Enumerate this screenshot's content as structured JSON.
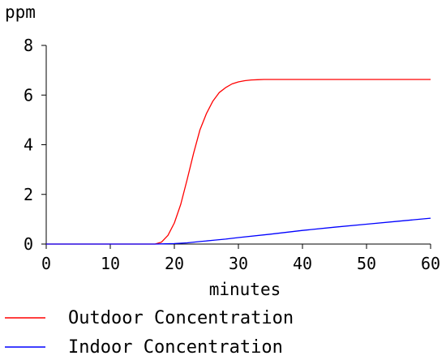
{
  "chart_data": {
    "type": "line",
    "xlabel": "minutes",
    "ylabel": "ppm",
    "xlim": [
      0,
      60
    ],
    "ylim": [
      0,
      8
    ],
    "x_ticks": [
      "0",
      "10",
      "20",
      "30",
      "40",
      "50",
      "60"
    ],
    "y_ticks": [
      "0",
      "2",
      "4",
      "6",
      "8"
    ],
    "grid": false,
    "legend_position": "bottom",
    "series": [
      {
        "name": "Outdoor Concentration",
        "color": "#ff0000",
        "x": [
          0,
          17,
          18,
          19,
          20,
          21,
          22,
          23,
          24,
          25,
          26,
          27,
          28,
          29,
          30,
          31,
          32,
          33,
          34,
          35,
          60
        ],
        "y": [
          0,
          0,
          0.08,
          0.35,
          0.85,
          1.6,
          2.6,
          3.65,
          4.6,
          5.25,
          5.75,
          6.1,
          6.3,
          6.45,
          6.53,
          6.58,
          6.61,
          6.62,
          6.63,
          6.63,
          6.63
        ]
      },
      {
        "name": "Indoor Concentration",
        "color": "#0000ff",
        "x": [
          0,
          17,
          18,
          20,
          22,
          24,
          26,
          28,
          30,
          35,
          40,
          45,
          50,
          55,
          60
        ],
        "y": [
          0,
          0,
          0.005,
          0.02,
          0.05,
          0.1,
          0.15,
          0.2,
          0.26,
          0.4,
          0.55,
          0.68,
          0.8,
          0.92,
          1.04
        ]
      }
    ]
  }
}
